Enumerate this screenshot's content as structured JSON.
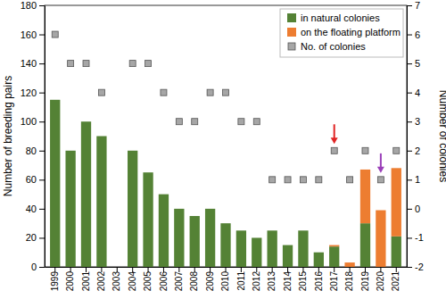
{
  "chart_data": {
    "type": "bar",
    "stacked": true,
    "legend": "upper right",
    "grid": false,
    "y_label": "Number of breeding pairs",
    "y2_label": "Number of colonies",
    "categories": [
      "1999",
      "2000",
      "2001",
      "2002",
      "2003",
      "2004",
      "2005",
      "2006",
      "2007",
      "2008",
      "2009",
      "2010",
      "2011",
      "2012",
      "2013",
      "2014",
      "2015",
      "2016",
      "2017",
      "2018",
      "2019",
      "2020",
      "2021"
    ],
    "series": [
      {
        "name": "in natural colonies",
        "type": "bar",
        "color": "#548235",
        "values": [
          115,
          80,
          100,
          90,
          null,
          80,
          65,
          50,
          40,
          35,
          40,
          30,
          25,
          20,
          25,
          15,
          25,
          10,
          14,
          0,
          30,
          0,
          21
        ]
      },
      {
        "name": "on the floating platform",
        "type": "bar",
        "color": "#ed7d31",
        "values": [
          null,
          null,
          null,
          null,
          null,
          null,
          null,
          null,
          null,
          null,
          null,
          null,
          null,
          null,
          null,
          null,
          null,
          null,
          1,
          3,
          37,
          39,
          47
        ]
      },
      {
        "name": "No. of colonies",
        "type": "scatter",
        "marker": "square",
        "axis": "y2",
        "color": "#a6a6a6",
        "values": [
          6,
          5,
          5,
          4,
          null,
          5,
          5,
          4,
          3,
          3,
          4,
          4,
          3,
          3,
          1,
          1,
          1,
          1,
          2,
          1,
          2,
          1,
          2
        ]
      }
    ],
    "arrows": [
      {
        "category": "2017",
        "color": "#e02424"
      },
      {
        "category": "2020",
        "color": "#9a3fb8"
      }
    ],
    "ylim": [
      0,
      180
    ],
    "yticks": [
      0,
      20,
      40,
      60,
      80,
      100,
      120,
      140,
      160,
      180
    ],
    "y2lim": [
      -2,
      7
    ],
    "y2ticks": [
      -2,
      -1,
      0,
      1,
      2,
      3,
      4,
      5,
      6,
      7
    ]
  }
}
